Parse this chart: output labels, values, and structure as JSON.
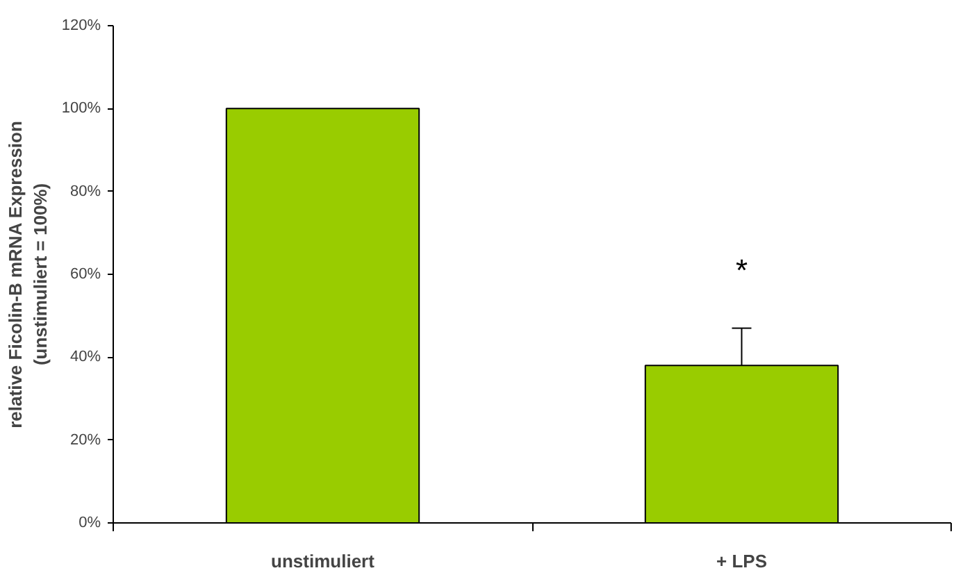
{
  "chart_data": {
    "type": "bar",
    "ylabel": "relative Ficolin-B mRNA Expression\n(unstimuliert = 100%)",
    "categories": [
      "unstimuliert",
      "+ LPS"
    ],
    "values": [
      100,
      38
    ],
    "color": "#99cc00",
    "errors": [
      null,
      [
        38,
        47
      ]
    ],
    "ylim": [
      0,
      120
    ],
    "yticks": [
      {
        "value": 0,
        "label": "0%"
      },
      {
        "value": 20,
        "label": "20%"
      },
      {
        "value": 40,
        "label": "40%"
      },
      {
        "value": 60,
        "label": "60%"
      },
      {
        "value": 80,
        "label": "80%"
      },
      {
        "value": 100,
        "label": "100%"
      },
      {
        "value": 120,
        "label": "120%"
      }
    ],
    "grid": false,
    "annotations": [
      "*"
    ]
  }
}
